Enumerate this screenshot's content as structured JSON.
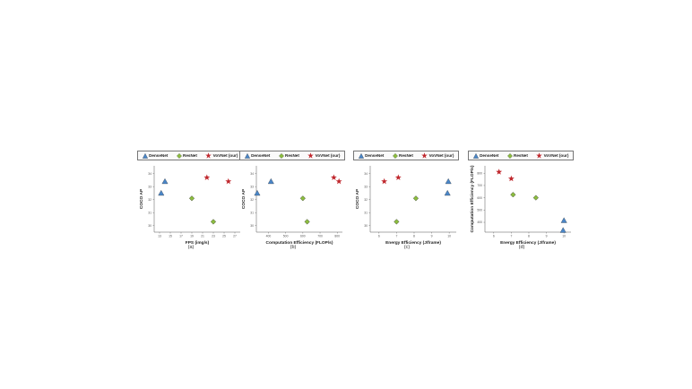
{
  "legend": {
    "densenet": "DenseNet",
    "resnet": "ResNet",
    "vovnet": "VoVNet (our)"
  },
  "colors": {
    "densenet": "#4a86c8",
    "resnet": "#8cbd3f",
    "vovnet": "#c0282e",
    "axis": "#555555"
  },
  "chart_data": [
    {
      "type": "scatter",
      "caption": "(a)",
      "xlabel": "FPS (img/s)",
      "ylabel": "COCO AP",
      "xticks": [
        "13",
        "15",
        "17",
        "19",
        "21",
        "23",
        "25",
        "27"
      ],
      "yticks": [
        "30",
        "31",
        "32",
        "33",
        "34"
      ],
      "xlim": [
        12,
        28
      ],
      "ylim": [
        29.5,
        34.6
      ],
      "series": [
        {
          "name": "DenseNet",
          "marker": "triangle",
          "points": [
            [
              13.3,
              32.5
            ],
            [
              14.0,
              33.4
            ]
          ]
        },
        {
          "name": "ResNet",
          "marker": "diamond",
          "points": [
            [
              19.0,
              32.1
            ],
            [
              23.0,
              30.3
            ]
          ]
        },
        {
          "name": "VoVNet (our)",
          "marker": "star",
          "points": [
            [
              21.8,
              33.7
            ],
            [
              25.8,
              33.4
            ]
          ]
        }
      ]
    },
    {
      "type": "scatter",
      "caption": "(b)",
      "xlabel": "Computation Efficiency (FLOP/s)",
      "ylabel": "COCO AP",
      "xticks": [
        "400",
        "500",
        "600",
        "700",
        "800"
      ],
      "yticks": [
        "30",
        "31",
        "32",
        "33",
        "34"
      ],
      "xlim": [
        330,
        830
      ],
      "ylim": [
        29.5,
        34.6
      ],
      "series": [
        {
          "name": "DenseNet",
          "marker": "triangle",
          "points": [
            [
              335,
              32.5
            ],
            [
              415,
              33.4
            ]
          ]
        },
        {
          "name": "ResNet",
          "marker": "diamond",
          "points": [
            [
              600,
              32.1
            ],
            [
              625,
              30.3
            ]
          ]
        },
        {
          "name": "VoVNet (our)",
          "marker": "star",
          "points": [
            [
              780,
              33.7
            ],
            [
              810,
              33.4
            ]
          ]
        }
      ]
    },
    {
      "type": "scatter",
      "caption": "(c)",
      "xlabel": "Energy Efficiency (J/frame)",
      "ylabel": "COCO AP",
      "xticks": [
        "6",
        "7",
        "8",
        "9",
        "10"
      ],
      "yticks": [
        "30",
        "31",
        "32",
        "33",
        "34"
      ],
      "xlim": [
        5.5,
        10.4
      ],
      "ylim": [
        29.5,
        34.6
      ],
      "series": [
        {
          "name": "DenseNet",
          "marker": "triangle",
          "points": [
            [
              9.9,
              32.5
            ],
            [
              9.95,
              33.4
            ]
          ]
        },
        {
          "name": "ResNet",
          "marker": "diamond",
          "points": [
            [
              8.1,
              32.1
            ],
            [
              7.0,
              30.3
            ]
          ]
        },
        {
          "name": "VoVNet (our)",
          "marker": "star",
          "points": [
            [
              6.3,
              33.4
            ],
            [
              7.1,
              33.7
            ]
          ]
        }
      ]
    },
    {
      "type": "scatter",
      "caption": "(d)",
      "xlabel": "Energy Efficiency (J/frame)",
      "ylabel": "Computation Efficiency (FLOP/s)",
      "xticks": [
        "6",
        "7",
        "8",
        "9",
        "10"
      ],
      "yticks": [
        "400",
        "500",
        "600",
        "700",
        "800"
      ],
      "xlim": [
        5.5,
        10.4
      ],
      "ylim": [
        320,
        860
      ],
      "series": [
        {
          "name": "DenseNet",
          "marker": "triangle",
          "points": [
            [
              10.0,
              415
            ],
            [
              9.95,
              335
            ]
          ]
        },
        {
          "name": "ResNet",
          "marker": "diamond",
          "points": [
            [
              7.1,
              625
            ],
            [
              8.4,
              600
            ]
          ]
        },
        {
          "name": "VoVNet (our)",
          "marker": "star",
          "points": [
            [
              6.3,
              810
            ],
            [
              7.0,
              755
            ]
          ]
        }
      ]
    }
  ]
}
